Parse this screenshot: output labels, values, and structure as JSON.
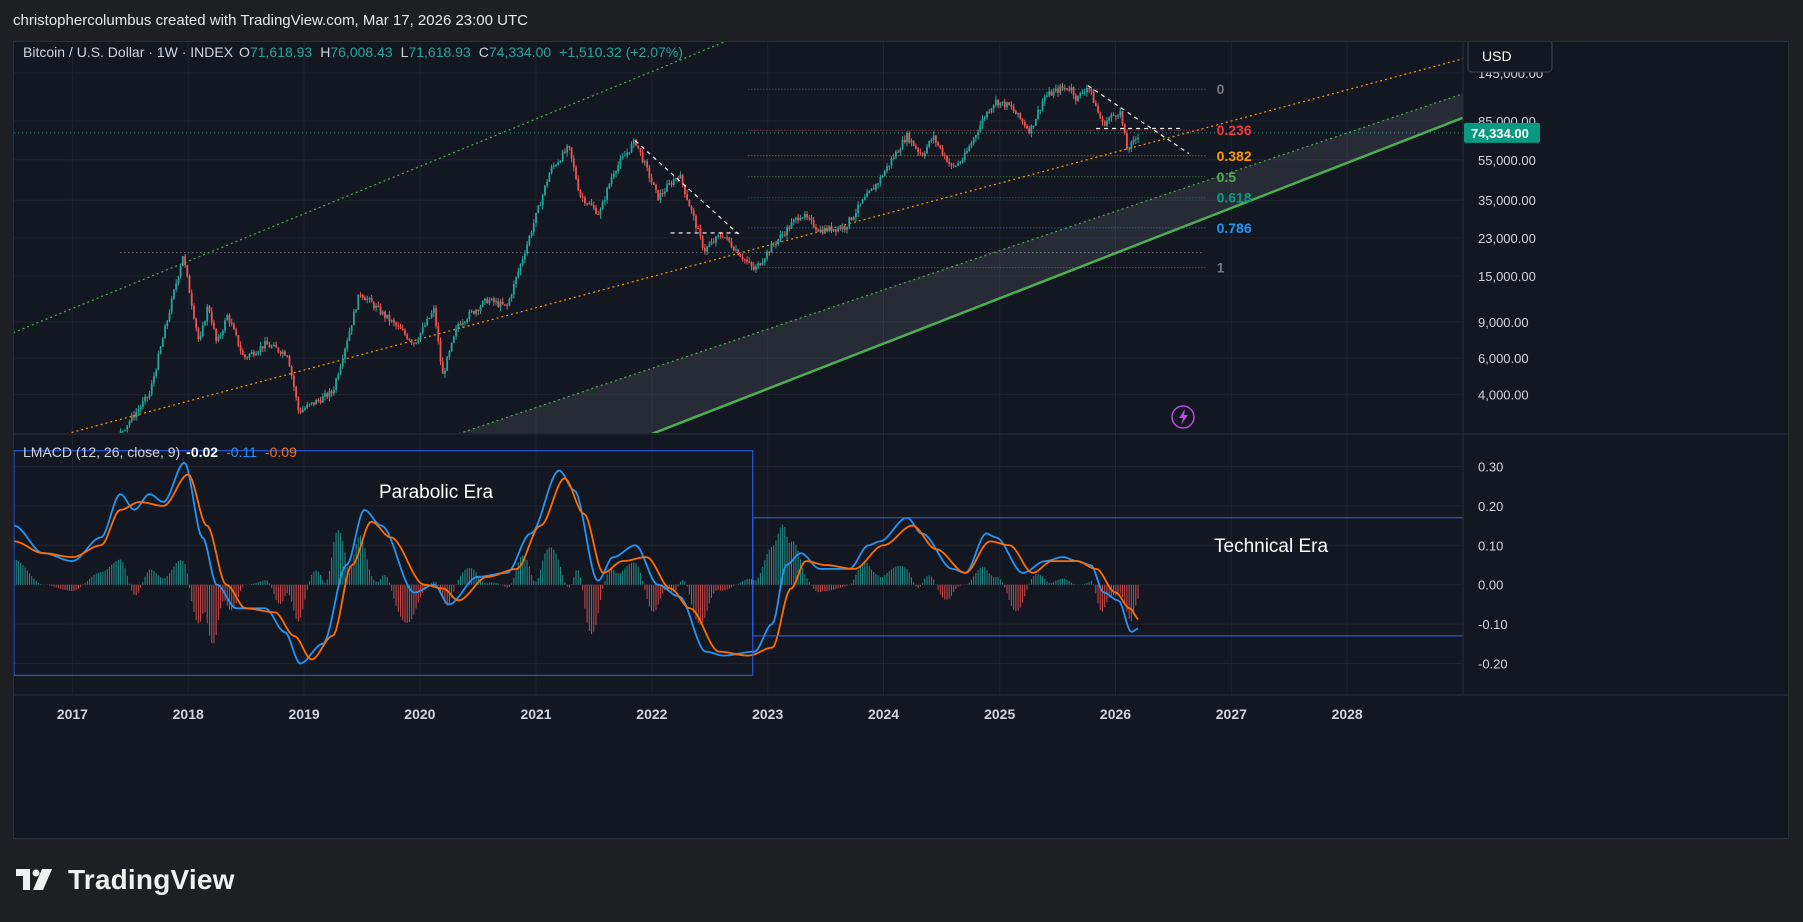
{
  "header": {
    "caption": "christophercolumbus created with TradingView.com, Mar 17, 2026 23:00 UTC"
  },
  "footer": {
    "logo_text": "TradingView",
    "logo_icon": "tradingview-logo"
  },
  "symbol": {
    "name": "Bitcoin / U.S. Dollar · 1W · INDEX",
    "o_label": "O",
    "o": "71,618.93",
    "h_label": "H",
    "h": "76,008.43",
    "l_label": "L",
    "l": "71,618.93",
    "c_label": "C",
    "c": "74,334.00",
    "change": "+1,510.32 (+2.07%)"
  },
  "currency": "USD",
  "price_tag": "74,334.00",
  "colors": {
    "bg": "#131722",
    "up": "#26a69a",
    "down": "#ef5350",
    "orange": "#f7931a",
    "green_line": "#4caf50",
    "blue": "#2962ff",
    "macd": "#2196f3",
    "signal": "#ff6d00",
    "tag": "#089981",
    "bolt": "#b44cde"
  },
  "bolt_icon": "lightning-icon",
  "chart_data": [
    {
      "type": "candlestick",
      "title": "Bitcoin / U.S. Dollar · 1W · INDEX",
      "y_scale": "log",
      "y_ticks": [
        "145,000.00",
        "85,000.00",
        "55,000.00",
        "35,000.00",
        "23,000.00",
        "15,000.00",
        "9,000.00",
        "6,000.00",
        "4,000.00"
      ],
      "x_ticks": [
        "2017",
        "2018",
        "2019",
        "2020",
        "2021",
        "2022",
        "2023",
        "2024",
        "2025",
        "2026",
        "2027",
        "2028"
      ],
      "price_path": [
        [
          "2016-07-01",
          650
        ],
        [
          "2017-01-01",
          1000
        ],
        [
          "2017-06-01",
          2600
        ],
        [
          "2017-09-01",
          4000
        ],
        [
          "2017-12-15",
          19000
        ],
        [
          "2018-02-05",
          7000
        ],
        [
          "2018-03-05",
          11000
        ],
        [
          "2018-04-01",
          7000
        ],
        [
          "2018-05-05",
          9700
        ],
        [
          "2018-06-25",
          6000
        ],
        [
          "2018-09-01",
          7000
        ],
        [
          "2018-11-10",
          6300
        ],
        [
          "2018-12-15",
          3300
        ],
        [
          "2019-04-01",
          4100
        ],
        [
          "2019-06-26",
          12500
        ],
        [
          "2019-09-01",
          10000
        ],
        [
          "2019-12-15",
          7100
        ],
        [
          "2020-02-15",
          10300
        ],
        [
          "2020-03-12",
          4900
        ],
        [
          "2020-05-01",
          8800
        ],
        [
          "2020-08-01",
          11500
        ],
        [
          "2020-10-01",
          10600
        ],
        [
          "2020-12-31",
          29000
        ],
        [
          "2021-02-15",
          49000
        ],
        [
          "2021-04-14",
          63000
        ],
        [
          "2021-05-20",
          37000
        ],
        [
          "2021-07-20",
          30000
        ],
        [
          "2021-09-01",
          48000
        ],
        [
          "2021-11-10",
          68000
        ],
        [
          "2022-01-20",
          36000
        ],
        [
          "2022-03-28",
          47000
        ],
        [
          "2022-06-15",
          20000
        ],
        [
          "2022-08-10",
          24000
        ],
        [
          "2022-11-20",
          16000
        ],
        [
          "2023-01-15",
          21000
        ],
        [
          "2023-04-15",
          30000
        ],
        [
          "2023-06-15",
          25000
        ],
        [
          "2023-09-01",
          26000
        ],
        [
          "2023-10-25",
          34000
        ],
        [
          "2023-12-15",
          43000
        ],
        [
          "2024-03-14",
          72000
        ],
        [
          "2024-05-01",
          58000
        ],
        [
          "2024-06-05",
          71000
        ],
        [
          "2024-08-05",
          50000
        ],
        [
          "2024-09-10",
          56000
        ],
        [
          "2024-11-15",
          90000
        ],
        [
          "2024-12-17",
          106000
        ],
        [
          "2025-02-01",
          100000
        ],
        [
          "2025-04-07",
          76000
        ],
        [
          "2025-05-22",
          111000
        ],
        [
          "2025-07-14",
          122000
        ],
        [
          "2025-08-14",
          123000
        ],
        [
          "2025-09-01",
          108000
        ],
        [
          "2025-10-06",
          126000
        ],
        [
          "2025-11-21",
          82000
        ],
        [
          "2025-12-15",
          88000
        ],
        [
          "2026-01-15",
          95000
        ],
        [
          "2026-02-06",
          62000
        ],
        [
          "2026-02-25",
          66000
        ],
        [
          "2026-03-17",
          74334
        ]
      ],
      "fib_levels": [
        {
          "label": "0",
          "price": 121000,
          "color": "#787b86"
        },
        {
          "label": "0.236",
          "price": 76500,
          "color": "#f23645"
        },
        {
          "label": "0.382",
          "price": 57500,
          "color": "#ff9800"
        },
        {
          "label": "0.5",
          "price": 45500,
          "color": "#4caf50"
        },
        {
          "label": "0.618",
          "price": 36000,
          "color": "#089981"
        },
        {
          "label": "0.786",
          "price": 25700,
          "color": "#2196f3"
        },
        {
          "label": "1",
          "price": 16500,
          "color": "#787b86"
        }
      ],
      "trend_lines": [
        {
          "name": "outer",
          "color": "#4caf50",
          "style": "dotted",
          "points": [
            [
              "2016-07-01",
              8000
            ],
            [
              "2023-01-01",
              250000
            ]
          ]
        },
        {
          "name": "upper",
          "color": "#ff9800",
          "style": "dotted",
          "points": [
            [
              "2016-07-01",
              2200
            ],
            [
              "2028-12-31",
              170000
            ]
          ]
        },
        {
          "name": "mid",
          "color": "#4caf50",
          "style": "dotted",
          "points": [
            [
              "2016-07-01",
              480
            ],
            [
              "2028-12-31",
              115000
            ]
          ]
        },
        {
          "name": "base",
          "color": "#4caf50",
          "style": "solid",
          "points": [
            [
              "2016-07-01",
              160
            ],
            [
              "2028-12-31",
              88000
            ]
          ]
        }
      ],
      "horizontal_lines": [
        {
          "price": 19500,
          "from": "2017-06-01",
          "to": "2026-10-01",
          "color": "#b2b5be"
        },
        {
          "price": 74334,
          "from": "2016-07-01",
          "to": "2028-12-31",
          "color": "#26a69a"
        }
      ],
      "dashed_lines": [
        [
          [
            "2021-11-10",
            68000
          ],
          [
            "2022-10-01",
            24000
          ]
        ],
        [
          [
            "2022-03-01",
            24300
          ],
          [
            "2022-10-01",
            24300
          ]
        ],
        [
          [
            "2025-10-06",
            126000
          ],
          [
            "2026-08-20",
            59000
          ]
        ],
        [
          [
            "2025-11-01",
            78000
          ],
          [
            "2026-08-01",
            78000
          ]
        ]
      ]
    },
    {
      "type": "line",
      "title": "LMACD (12, 26, close, 9)",
      "values_label": [
        "-0.02",
        "-0.11",
        "-0.09"
      ],
      "y_ticks": [
        "0.30",
        "0.20",
        "0.10",
        "0.00",
        "-0.10",
        "-0.20"
      ],
      "series": [
        {
          "name": "MACD",
          "color": "#2196f3",
          "points": [
            [
              "2016-07-01",
              0.15
            ],
            [
              "2016-10-01",
              0.08
            ],
            [
              "2017-01-01",
              0.06
            ],
            [
              "2017-04-01",
              0.12
            ],
            [
              "2017-06-01",
              0.23
            ],
            [
              "2017-07-15",
              0.19
            ],
            [
              "2017-09-01",
              0.23
            ],
            [
              "2017-10-15",
              0.21
            ],
            [
              "2017-12-20",
              0.31
            ],
            [
              "2018-02-15",
              0.12
            ],
            [
              "2018-04-01",
              0.0
            ],
            [
              "2018-06-01",
              -0.06
            ],
            [
              "2018-09-01",
              -0.06
            ],
            [
              "2018-11-01",
              -0.12
            ],
            [
              "2018-12-20",
              -0.2
            ],
            [
              "2019-03-01",
              -0.15
            ],
            [
              "2019-05-15",
              0.05
            ],
            [
              "2019-07-10",
              0.19
            ],
            [
              "2019-09-01",
              0.15
            ],
            [
              "2019-12-15",
              -0.02
            ],
            [
              "2020-02-15",
              0.0
            ],
            [
              "2020-04-01",
              -0.05
            ],
            [
              "2020-07-01",
              0.02
            ],
            [
              "2020-10-01",
              0.03
            ],
            [
              "2020-12-15",
              0.13
            ],
            [
              "2021-03-15",
              0.29
            ],
            [
              "2021-05-01",
              0.24
            ],
            [
              "2021-07-15",
              0.01
            ],
            [
              "2021-09-01",
              0.07
            ],
            [
              "2021-11-10",
              0.1
            ],
            [
              "2022-01-20",
              0.0
            ],
            [
              "2022-03-28",
              -0.03
            ],
            [
              "2022-06-20",
              -0.17
            ],
            [
              "2022-08-15",
              -0.18
            ],
            [
              "2022-11-20",
              -0.17
            ],
            [
              "2023-01-15",
              -0.1
            ],
            [
              "2023-03-01",
              0.05
            ],
            [
              "2023-04-15",
              0.08
            ],
            [
              "2023-06-15",
              0.04
            ],
            [
              "2023-09-15",
              0.04
            ],
            [
              "2023-11-15",
              0.1
            ],
            [
              "2023-12-20",
              0.11
            ],
            [
              "2024-03-15",
              0.17
            ],
            [
              "2024-05-01",
              0.13
            ],
            [
              "2024-08-05",
              0.04
            ],
            [
              "2024-09-15",
              0.03
            ],
            [
              "2024-11-20",
              0.13
            ],
            [
              "2024-12-20",
              0.12
            ],
            [
              "2025-03-15",
              0.03
            ],
            [
              "2025-05-25",
              0.06
            ],
            [
              "2025-07-20",
              0.07
            ],
            [
              "2025-09-01",
              0.06
            ],
            [
              "2025-10-15",
              0.05
            ],
            [
              "2025-11-25",
              -0.02
            ],
            [
              "2026-01-10",
              -0.04
            ],
            [
              "2026-02-20",
              -0.12
            ],
            [
              "2026-03-17",
              -0.11
            ]
          ]
        },
        {
          "name": "Signal",
          "color": "#ff6d00",
          "points": [
            [
              "2016-07-01",
              0.11
            ],
            [
              "2016-10-01",
              0.08
            ],
            [
              "2017-01-01",
              0.07
            ],
            [
              "2017-04-01",
              0.1
            ],
            [
              "2017-06-01",
              0.19
            ],
            [
              "2017-08-01",
              0.21
            ],
            [
              "2017-10-15",
              0.2
            ],
            [
              "2018-01-01",
              0.28
            ],
            [
              "2018-03-01",
              0.15
            ],
            [
              "2018-05-01",
              0.0
            ],
            [
              "2018-07-01",
              -0.06
            ],
            [
              "2018-10-01",
              -0.07
            ],
            [
              "2018-12-01",
              -0.13
            ],
            [
              "2019-01-25",
              -0.19
            ],
            [
              "2019-04-01",
              -0.13
            ],
            [
              "2019-06-01",
              0.05
            ],
            [
              "2019-08-01",
              0.16
            ],
            [
              "2019-10-01",
              0.12
            ],
            [
              "2020-01-15",
              0.0
            ],
            [
              "2020-03-15",
              -0.01
            ],
            [
              "2020-05-01",
              -0.04
            ],
            [
              "2020-08-01",
              0.02
            ],
            [
              "2020-11-01",
              0.04
            ],
            [
              "2021-01-15",
              0.15
            ],
            [
              "2021-04-01",
              0.27
            ],
            [
              "2021-06-01",
              0.18
            ],
            [
              "2021-08-01",
              0.03
            ],
            [
              "2021-10-01",
              0.06
            ],
            [
              "2021-12-15",
              0.07
            ],
            [
              "2022-03-01",
              -0.01
            ],
            [
              "2022-05-01",
              -0.06
            ],
            [
              "2022-08-01",
              -0.17
            ],
            [
              "2022-11-01",
              -0.18
            ],
            [
              "2023-01-15",
              -0.16
            ],
            [
              "2023-03-15",
              -0.01
            ],
            [
              "2023-05-01",
              0.06
            ],
            [
              "2023-07-01",
              0.05
            ],
            [
              "2023-10-01",
              0.04
            ],
            [
              "2024-01-01",
              0.1
            ],
            [
              "2024-04-01",
              0.15
            ],
            [
              "2024-06-15",
              0.09
            ],
            [
              "2024-09-15",
              0.03
            ],
            [
              "2024-12-01",
              0.11
            ],
            [
              "2025-02-01",
              0.1
            ],
            [
              "2025-04-15",
              0.03
            ],
            [
              "2025-06-15",
              0.06
            ],
            [
              "2025-09-01",
              0.06
            ],
            [
              "2025-11-01",
              0.04
            ],
            [
              "2026-01-01",
              -0.02
            ],
            [
              "2026-02-15",
              -0.06
            ],
            [
              "2026-03-17",
              -0.09
            ]
          ]
        }
      ],
      "annotations": [
        {
          "text": "Parabolic Era",
          "box": [
            [
              "2016-07-01",
              0.34
            ],
            [
              "2022-11-15",
              -0.23
            ]
          ]
        },
        {
          "text": "Technical Era",
          "box": [
            [
              "2022-11-15",
              0.17
            ],
            [
              "2028-12-31",
              -0.13
            ]
          ]
        }
      ]
    }
  ]
}
